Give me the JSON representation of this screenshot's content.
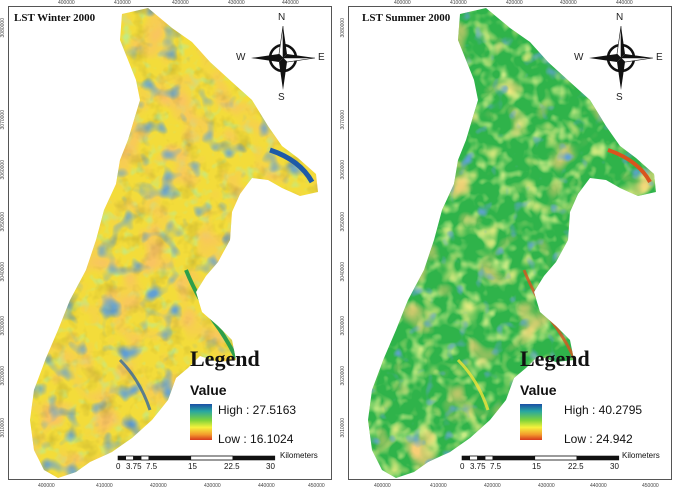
{
  "left": {
    "title": "LST Winter 2000",
    "legend": {
      "heading": "Legend",
      "value_label": "Value",
      "high": "High : 27.5163",
      "low": "Low : 16.1024"
    },
    "compass": {
      "n": "N",
      "s": "S",
      "e": "E",
      "w": "W"
    },
    "scale": {
      "unit": "Kilometers",
      "ticks": [
        "0",
        "3.75",
        "7.5",
        "15",
        "22.5",
        "30"
      ]
    },
    "x_ticks": [
      "400000",
      "410000",
      "420000",
      "430000",
      "440000",
      "450000"
    ],
    "y_ticks": [
      "3080000",
      "3070000",
      "3060000",
      "3050000",
      "3040000",
      "3030000",
      "3020000",
      "3010000"
    ]
  },
  "right": {
    "title": "LST Summer 2000",
    "legend": {
      "heading": "Legend",
      "value_label": "Value",
      "high": "High : 40.2795",
      "low": "Low : 24.942"
    },
    "compass": {
      "n": "N",
      "s": "S",
      "e": "E",
      "w": "W"
    },
    "scale": {
      "unit": "Kilometers",
      "ticks": [
        "0",
        "3.75",
        "7.5",
        "15",
        "22.5",
        "30"
      ]
    },
    "x_ticks": [
      "400000",
      "410000",
      "420000",
      "430000",
      "440000",
      "450000"
    ],
    "y_ticks": [
      "3080000",
      "3070000",
      "3060000",
      "3050000",
      "3040000",
      "3030000",
      "3020000",
      "3010000"
    ]
  },
  "colors": {
    "winter": [
      "#f6e13a",
      "#f2a52c",
      "#9fd63b",
      "#2d9f4a",
      "#1d5aa8",
      "#d9541e"
    ],
    "summer": [
      "#2fb34a",
      "#8fd43a",
      "#f0e23a",
      "#f2a030",
      "#1d5aa8",
      "#d9541e"
    ]
  }
}
